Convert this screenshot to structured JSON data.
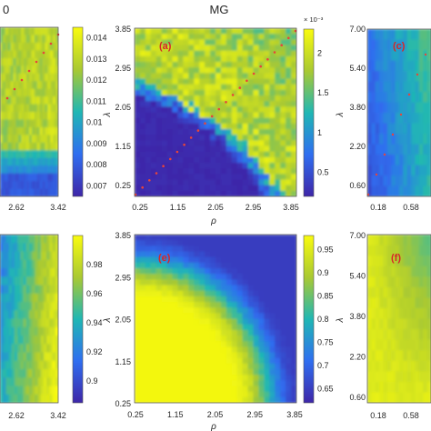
{
  "figure": {
    "partial_title_left": "0",
    "title": "MG"
  },
  "colors": {
    "low": "#3e26a8",
    "mid": "#1fa2c8",
    "high": "#f9fb0e",
    "marker": "#e8443a",
    "panel_label": "#d62728"
  },
  "chart_data": [
    {
      "panel": "left-top",
      "type": "heatmap",
      "x_ticks": [
        "2.62",
        "3.42"
      ],
      "colorbar_ticks": [
        "0.014",
        "0.013",
        "0.012",
        "0.011",
        "0.01",
        "0.009",
        "0.008",
        "0.007"
      ],
      "colorbar_range": [
        0.0065,
        0.0145
      ]
    },
    {
      "panel": "a",
      "label": "(a)",
      "type": "heatmap",
      "xlabel": "ρ",
      "ylabel": "λ",
      "x_ticks": [
        "0.25",
        "1.15",
        "2.05",
        "2.95",
        "3.85"
      ],
      "y_ticks": [
        "3.85",
        "2.95",
        "2.05",
        "1.15",
        "0.25"
      ],
      "xlim": [
        0.25,
        3.85
      ],
      "ylim": [
        0.25,
        3.85
      ],
      "colorbar_ticks": [
        "2",
        "1.5",
        "1",
        "0.5"
      ],
      "colorbar_range": [
        0.0002,
        0.0023
      ],
      "colorbar_exponent": "× 10⁻³",
      "diagonal_markers": true
    },
    {
      "panel": "c",
      "label": "(c)",
      "type": "heatmap",
      "ylabel": "λ",
      "x_ticks": [
        "0.18",
        "0.58"
      ],
      "y_ticks": [
        "7.00",
        "5.40",
        "3.80",
        "2.20",
        "0.60"
      ]
    },
    {
      "panel": "left-bottom",
      "type": "heatmap",
      "x_ticks": [
        "2.62",
        "3.42"
      ],
      "colorbar_ticks": [
        "0.98",
        "0.96",
        "0.94",
        "0.92",
        "0.9"
      ],
      "colorbar_range": [
        0.885,
        1.0
      ]
    },
    {
      "panel": "e",
      "label": "(e)",
      "type": "heatmap",
      "xlabel": "ρ",
      "ylabel": "λ",
      "x_ticks": [
        "0.25",
        "1.15",
        "2.05",
        "2.95",
        "3.85"
      ],
      "y_ticks": [
        "3.85",
        "2.95",
        "2.05",
        "1.15",
        "0.25"
      ],
      "xlim": [
        0.25,
        3.85
      ],
      "ylim": [
        0.25,
        3.85
      ],
      "colorbar_ticks": [
        "0.95",
        "0.9",
        "0.85",
        "0.8",
        "0.75",
        "0.7",
        "0.65"
      ],
      "colorbar_range": [
        0.62,
        0.98
      ]
    },
    {
      "panel": "f",
      "label": "(f)",
      "type": "heatmap",
      "ylabel": "λ",
      "x_ticks": [
        "0.18",
        "0.58"
      ],
      "y_ticks": [
        "7.00",
        "5.40",
        "3.80",
        "2.20",
        "0.60"
      ]
    }
  ]
}
